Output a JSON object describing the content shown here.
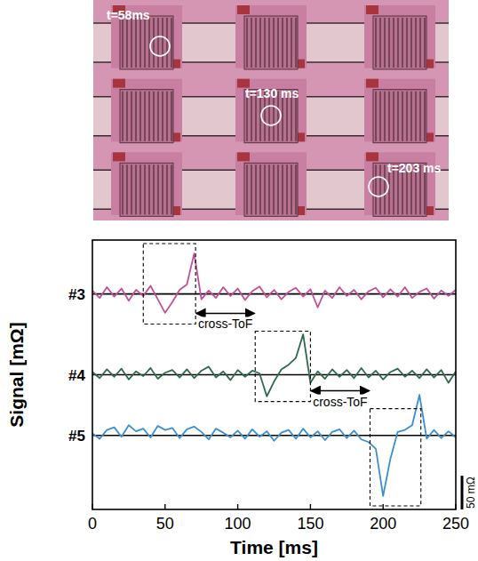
{
  "micrograph": {
    "labels": [
      "t=58ms",
      "t=130 ms",
      "t=203 ms"
    ]
  },
  "chart_data": {
    "type": "line",
    "x_label": "Time [ms]",
    "y_label": "Signal [mΩ]",
    "x": [
      0,
      5,
      10,
      15,
      20,
      25,
      30,
      35,
      40,
      45,
      50,
      55,
      60,
      65,
      70,
      75,
      80,
      85,
      90,
      95,
      100,
      105,
      110,
      115,
      120,
      125,
      130,
      135,
      140,
      145,
      150,
      155,
      160,
      165,
      170,
      175,
      180,
      185,
      190,
      195,
      200,
      205,
      210,
      215,
      220,
      225,
      230,
      235,
      240,
      245,
      250
    ],
    "xlim": [
      0,
      250
    ],
    "xticks": [
      0,
      50,
      100,
      150,
      200,
      250
    ],
    "tick_labels": "x",
    "series": [
      {
        "name": "#3",
        "color": "#c0509c",
        "ylim": [
          -50,
          80
        ],
        "yticks": [
          0
        ],
        "box": [
          35,
          71
        ],
        "values": [
          5,
          -6,
          10,
          -4,
          8,
          -10,
          6,
          -3,
          12,
          -8,
          -28,
          -12,
          6,
          14,
          60,
          -8,
          5,
          -6,
          10,
          -3,
          8,
          -9,
          4,
          11,
          -5,
          6,
          -8,
          3,
          9,
          -4,
          7,
          -20,
          5,
          -6,
          10,
          -3,
          6,
          -8,
          4,
          9,
          -5,
          7,
          -4,
          10,
          -6,
          3,
          8,
          -7,
          5,
          -3,
          6
        ]
      },
      {
        "name": "#4",
        "color": "#2e6b4a",
        "ylim": [
          -45,
          70
        ],
        "yticks": [
          0
        ],
        "box": [
          112,
          150
        ],
        "values": [
          4,
          -5,
          8,
          -3,
          9,
          -7,
          5,
          -2,
          10,
          -6,
          3,
          7,
          -4,
          8,
          -5,
          6,
          12,
          -4,
          5,
          -8,
          7,
          -3,
          6,
          2,
          -32,
          -10,
          8,
          15,
          25,
          60,
          -12,
          5,
          -6,
          8,
          -3,
          7,
          -5,
          10,
          -4,
          6,
          -7,
          4,
          9,
          -3,
          6,
          -5,
          8,
          -4,
          7,
          -12,
          5
        ]
      },
      {
        "name": "#5",
        "color": "#3a8fd0",
        "ylim": [
          -110,
          45
        ],
        "yticks": [
          0
        ],
        "box": [
          191,
          226
        ],
        "values": [
          3,
          -5,
          8,
          12,
          -2,
          15,
          6,
          10,
          -3,
          14,
          8,
          11,
          -4,
          9,
          13,
          5,
          -6,
          10,
          4,
          -3,
          7,
          -5,
          9,
          -2,
          6,
          -8,
          4,
          8,
          -5,
          10,
          -3,
          6,
          -7,
          5,
          9,
          -4,
          7,
          -6,
          -10,
          -20,
          -90,
          -35,
          5,
          8,
          15,
          60,
          -5,
          8,
          -4,
          6,
          -3
        ]
      }
    ],
    "annotations": [
      {
        "text": "cross-ToF",
        "x": [
          71,
          112
        ]
      },
      {
        "text": "cross-ToF",
        "x": [
          150,
          191
        ]
      }
    ],
    "scale_bar": {
      "value": 50,
      "label": "50 mΩ"
    }
  }
}
